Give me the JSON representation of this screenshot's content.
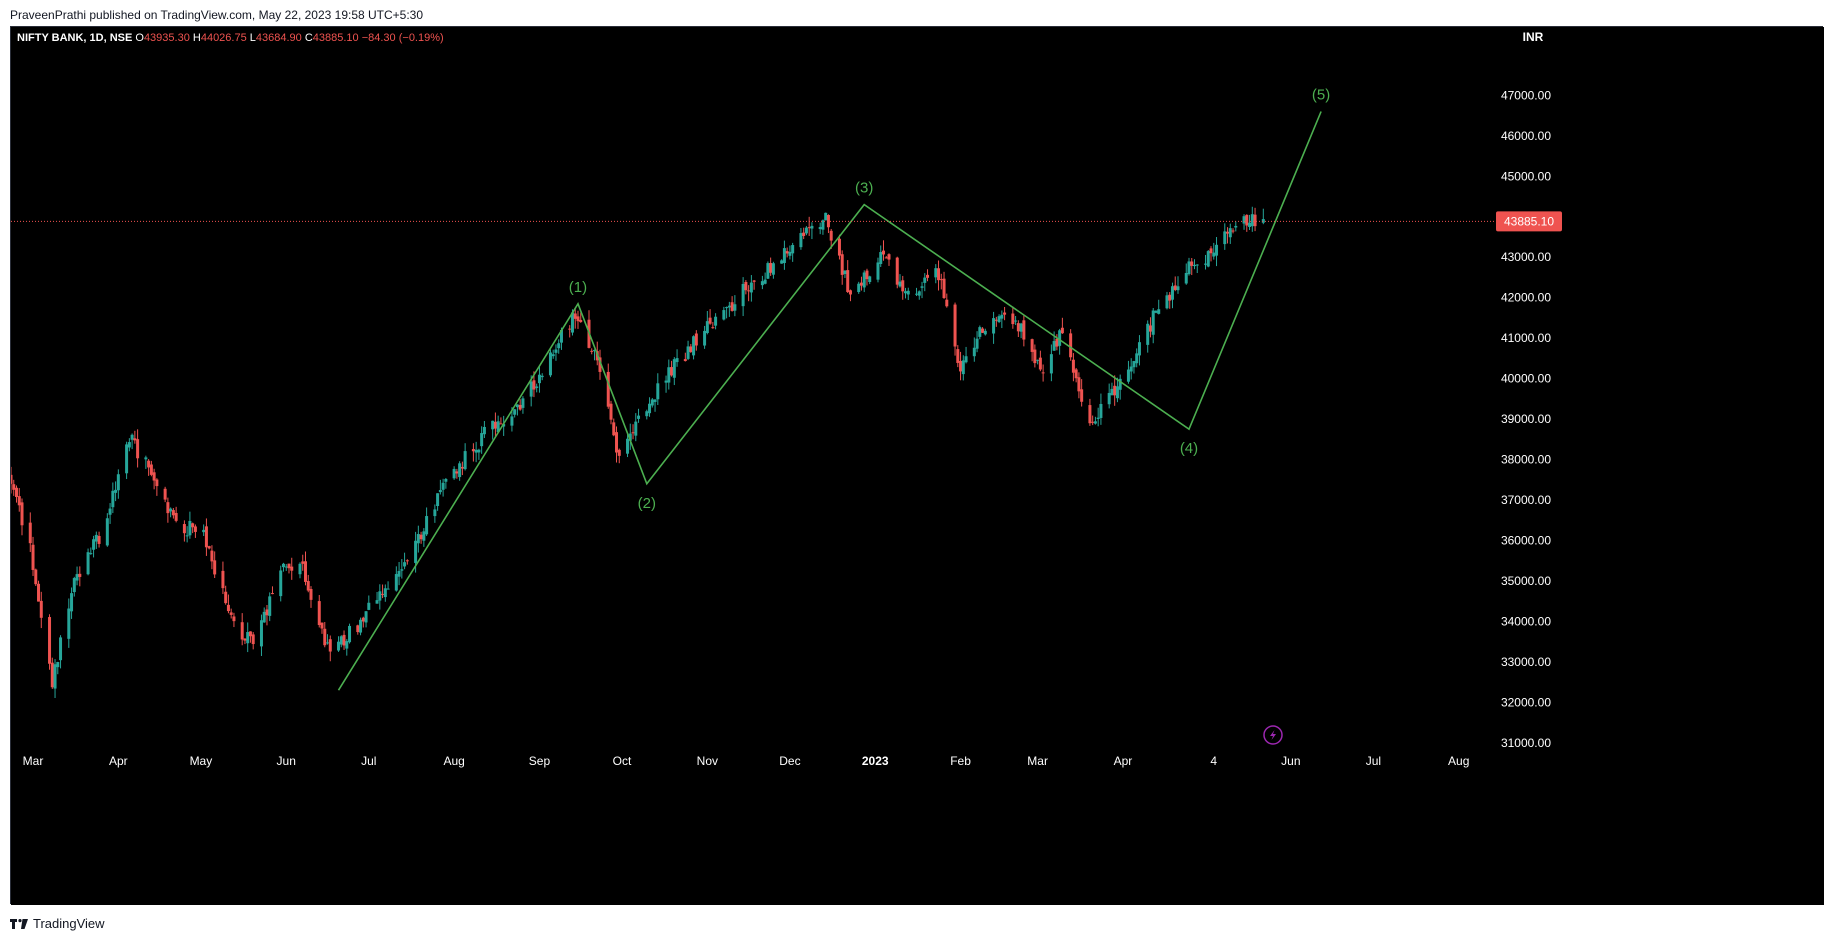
{
  "publisher_line": "PraveenPrathi published on TradingView.com, May 22, 2023 19:58 UTC+5:30",
  "footer_brand": "TradingView",
  "colors": {
    "background": "#000000",
    "up_candle": "#26a69a",
    "down_candle": "#ef5350",
    "wave": "#4caf50",
    "price_line": "#ef5350",
    "axis_text": "#ffffff"
  },
  "chart_data": {
    "type": "candlestick",
    "symbol_line": {
      "symbol": "NIFTY BANK, 1D, NSE",
      "open_label": "O",
      "open": "43935.30",
      "high_label": "H",
      "high": "44026.75",
      "low_label": "L",
      "low": "43684.90",
      "close_label": "C",
      "close": "43885.10",
      "change": "−84.30 (−0.19%)"
    },
    "currency": "INR",
    "last_price": "43885.10",
    "y_ticks": [
      "47000.00",
      "46000.00",
      "45000.00",
      "44000.00",
      "43000.00",
      "42000.00",
      "41000.00",
      "40000.00",
      "39000.00",
      "38000.00",
      "37000.00",
      "36000.00",
      "35000.00",
      "34000.00",
      "33000.00",
      "32000.00",
      "31000.00"
    ],
    "ylim": [
      30700,
      47700
    ],
    "x_axis_months": [
      {
        "label": "Mar",
        "date": "2022-03-01"
      },
      {
        "label": "Apr",
        "date": "2022-04-01"
      },
      {
        "label": "May",
        "date": "2022-05-01"
      },
      {
        "label": "Jun",
        "date": "2022-06-01"
      },
      {
        "label": "Jul",
        "date": "2022-07-01"
      },
      {
        "label": "Aug",
        "date": "2022-08-01"
      },
      {
        "label": "Sep",
        "date": "2022-09-01"
      },
      {
        "label": "Oct",
        "date": "2022-10-01"
      },
      {
        "label": "Nov",
        "date": "2022-11-01"
      },
      {
        "label": "Dec",
        "date": "2022-12-01"
      },
      {
        "label": "2023",
        "date": "2023-01-01",
        "bold": true
      },
      {
        "label": "Feb",
        "date": "2023-02-01"
      },
      {
        "label": "Mar",
        "date": "2023-03-01"
      },
      {
        "label": "Apr",
        "date": "2023-04-01"
      },
      {
        "label": "4",
        "date": "2023-05-04"
      },
      {
        "label": "Jun",
        "date": "2023-06-01"
      },
      {
        "label": "Jul",
        "date": "2023-07-01"
      },
      {
        "label": "Aug",
        "date": "2023-08-01"
      }
    ],
    "xlim": [
      "2022-02-21",
      "2023-08-12"
    ],
    "price_path": [
      {
        "date": "2022-02-21",
        "value": 37600
      },
      {
        "date": "2022-02-28",
        "value": 35800
      },
      {
        "date": "2022-03-08",
        "value": 32400
      },
      {
        "date": "2022-03-15",
        "value": 34800
      },
      {
        "date": "2022-03-28",
        "value": 36500
      },
      {
        "date": "2022-04-05",
        "value": 38600
      },
      {
        "date": "2022-04-13",
        "value": 37600
      },
      {
        "date": "2022-04-22",
        "value": 36400
      },
      {
        "date": "2022-05-02",
        "value": 36200
      },
      {
        "date": "2022-05-12",
        "value": 34100
      },
      {
        "date": "2022-05-20",
        "value": 33400
      },
      {
        "date": "2022-05-30",
        "value": 35300
      },
      {
        "date": "2022-06-06",
        "value": 35500
      },
      {
        "date": "2022-06-17",
        "value": 33200
      },
      {
        "date": "2022-06-24",
        "value": 33700
      },
      {
        "date": "2022-07-05",
        "value": 34600
      },
      {
        "date": "2022-07-15",
        "value": 35400
      },
      {
        "date": "2022-07-29",
        "value": 37400
      },
      {
        "date": "2022-08-12",
        "value": 38600
      },
      {
        "date": "2022-08-26",
        "value": 39400
      },
      {
        "date": "2022-09-14",
        "value": 41600
      },
      {
        "date": "2022-09-23",
        "value": 40200
      },
      {
        "date": "2022-09-30",
        "value": 38000
      },
      {
        "date": "2022-10-06",
        "value": 38900
      },
      {
        "date": "2022-10-20",
        "value": 40300
      },
      {
        "date": "2022-11-01",
        "value": 41300
      },
      {
        "date": "2022-11-15",
        "value": 42200
      },
      {
        "date": "2022-12-01",
        "value": 43200
      },
      {
        "date": "2022-12-14",
        "value": 44000
      },
      {
        "date": "2022-12-23",
        "value": 42100
      },
      {
        "date": "2023-01-04",
        "value": 43000
      },
      {
        "date": "2023-01-12",
        "value": 42100
      },
      {
        "date": "2023-01-24",
        "value": 42600
      },
      {
        "date": "2023-02-01",
        "value": 40200
      },
      {
        "date": "2023-02-09",
        "value": 41300
      },
      {
        "date": "2023-02-21",
        "value": 41500
      },
      {
        "date": "2023-03-02",
        "value": 40100
      },
      {
        "date": "2023-03-10",
        "value": 41300
      },
      {
        "date": "2023-03-20",
        "value": 38900
      },
      {
        "date": "2023-03-31",
        "value": 39800
      },
      {
        "date": "2023-04-12",
        "value": 41500
      },
      {
        "date": "2023-04-25",
        "value": 42700
      },
      {
        "date": "2023-05-05",
        "value": 43200
      },
      {
        "date": "2023-05-15",
        "value": 44000
      },
      {
        "date": "2023-05-22",
        "value": 43885
      }
    ],
    "wave_points": [
      {
        "label": "",
        "date": "2022-06-20",
        "value": 32300
      },
      {
        "label": "(1)",
        "date": "2022-09-15",
        "value": 41850,
        "label_pos": "above"
      },
      {
        "label": "(2)",
        "date": "2022-10-10",
        "value": 37400,
        "label_pos": "below"
      },
      {
        "label": "(3)",
        "date": "2022-12-28",
        "value": 44300,
        "label_pos": "above"
      },
      {
        "label": "(4)",
        "date": "2023-04-25",
        "value": 38750,
        "label_pos": "below"
      },
      {
        "label": "(5)",
        "date": "2023-06-12",
        "value": 46600,
        "label_pos": "above"
      }
    ]
  }
}
